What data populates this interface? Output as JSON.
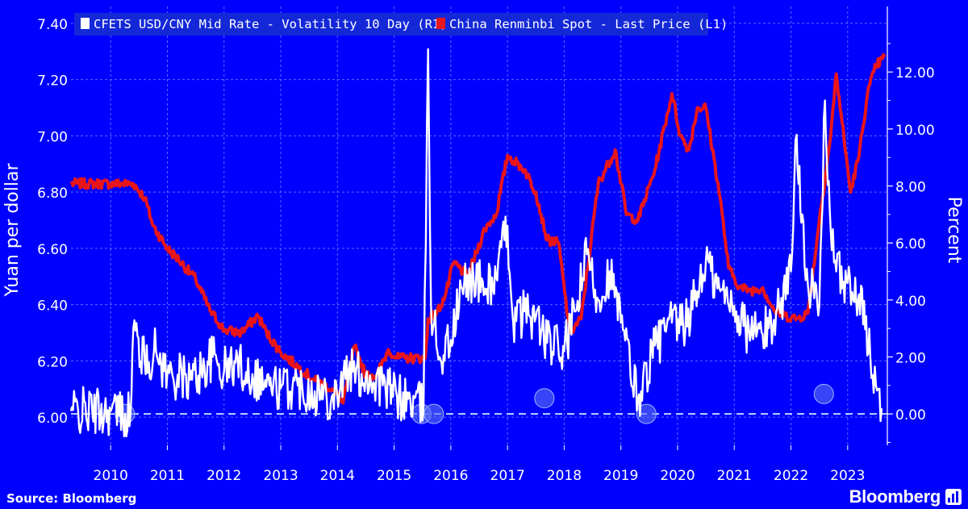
{
  "colors": {
    "background": "#0000FF",
    "volatility": "#FFFFFF",
    "spot": "#E8151B",
    "grid": "#5C6BFF",
    "baseline": "#BFD4FF"
  },
  "source_label": "Source:",
  "source_value": "Bloomberg",
  "brand": "Bloomberg",
  "brand_icon": "bar-chart-icon",
  "chart_data": {
    "type": "line",
    "left_axis_label": "Yuan per dollar",
    "right_axis_label": "Percent",
    "left_ylim": [
      5.9,
      7.46
    ],
    "left_ticks": [
      "6.00",
      "6.20",
      "6.40",
      "6.60",
      "6.80",
      "7.00",
      "7.20",
      "7.40"
    ],
    "right_ylim": [
      -1.1,
      14.3
    ],
    "right_ticks": [
      "0.00",
      "2.00",
      "4.00",
      "6.00",
      "8.00",
      "10.00",
      "12.00"
    ],
    "xlim": [
      2009.3,
      2023.7
    ],
    "x_ticks": [
      "2010",
      "2011",
      "2012",
      "2013",
      "2014",
      "2015",
      "2016",
      "2017",
      "2018",
      "2019",
      "2020",
      "2021",
      "2022",
      "2023"
    ],
    "grid": true,
    "legend_placement": "top-left",
    "legend": [
      {
        "label": "CFETS USD/CNY Mid Rate - Volatility 10 Day (R1)",
        "color": "#FFFFFF"
      },
      {
        "label": "China Renminbi Spot - Last Price (L1)",
        "color": "#E8151B"
      }
    ],
    "series": [
      {
        "name": "China Renminbi Spot - Last Price (L1)",
        "axis": "left",
        "points": [
          [
            2009.3,
            6.83
          ],
          [
            2010.0,
            6.83
          ],
          [
            2010.4,
            6.83
          ],
          [
            2010.6,
            6.78
          ],
          [
            2010.75,
            6.68
          ],
          [
            2011.0,
            6.6
          ],
          [
            2011.2,
            6.56
          ],
          [
            2011.5,
            6.49
          ],
          [
            2011.75,
            6.38
          ],
          [
            2012.0,
            6.31
          ],
          [
            2012.3,
            6.3
          ],
          [
            2012.6,
            6.36
          ],
          [
            2012.75,
            6.3
          ],
          [
            2013.0,
            6.23
          ],
          [
            2013.3,
            6.18
          ],
          [
            2013.6,
            6.13
          ],
          [
            2013.9,
            6.1
          ],
          [
            2014.1,
            6.05
          ],
          [
            2014.3,
            6.25
          ],
          [
            2014.5,
            6.15
          ],
          [
            2014.7,
            6.15
          ],
          [
            2014.9,
            6.24
          ],
          [
            2015.05,
            6.21
          ],
          [
            2015.2,
            6.21
          ],
          [
            2015.55,
            6.21
          ],
          [
            2015.6,
            6.35
          ],
          [
            2015.75,
            6.37
          ],
          [
            2015.9,
            6.43
          ],
          [
            2016.05,
            6.55
          ],
          [
            2016.3,
            6.5
          ],
          [
            2016.6,
            6.67
          ],
          [
            2016.8,
            6.72
          ],
          [
            2017.0,
            6.93
          ],
          [
            2017.3,
            6.88
          ],
          [
            2017.5,
            6.8
          ],
          [
            2017.7,
            6.63
          ],
          [
            2017.9,
            6.62
          ],
          [
            2018.1,
            6.3
          ],
          [
            2018.3,
            6.35
          ],
          [
            2018.6,
            6.83
          ],
          [
            2018.9,
            6.95
          ],
          [
            2019.1,
            6.72
          ],
          [
            2019.3,
            6.7
          ],
          [
            2019.6,
            6.88
          ],
          [
            2019.9,
            7.15
          ],
          [
            2020.05,
            7.0
          ],
          [
            2020.2,
            6.95
          ],
          [
            2020.35,
            7.1
          ],
          [
            2020.5,
            7.1
          ],
          [
            2020.75,
            6.78
          ],
          [
            2020.9,
            6.53
          ],
          [
            2021.1,
            6.46
          ],
          [
            2021.3,
            6.45
          ],
          [
            2021.5,
            6.46
          ],
          [
            2021.7,
            6.38
          ],
          [
            2021.9,
            6.36
          ],
          [
            2022.1,
            6.35
          ],
          [
            2022.3,
            6.37
          ],
          [
            2022.5,
            6.7
          ],
          [
            2022.7,
            7.0
          ],
          [
            2022.8,
            7.22
          ],
          [
            2022.9,
            7.05
          ],
          [
            2023.05,
            6.8
          ],
          [
            2023.2,
            6.93
          ],
          [
            2023.35,
            7.15
          ],
          [
            2023.5,
            7.25
          ],
          [
            2023.65,
            7.28
          ]
        ]
      },
      {
        "name": "CFETS USD/CNY Mid Rate - Volatility 10 Day (R1)",
        "axis": "right",
        "points": [
          [
            2009.3,
            0.1
          ],
          [
            2010.0,
            0.1
          ],
          [
            2010.35,
            0.0
          ],
          [
            2010.4,
            3.0
          ],
          [
            2010.6,
            1.8
          ],
          [
            2010.8,
            2.2
          ],
          [
            2011.0,
            1.4
          ],
          [
            2011.4,
            1.2
          ],
          [
            2011.6,
            1.5
          ],
          [
            2011.8,
            2.0
          ],
          [
            2012.0,
            1.5
          ],
          [
            2012.2,
            1.8
          ],
          [
            2012.5,
            1.4
          ],
          [
            2012.8,
            1.0
          ],
          [
            2013.0,
            0.9
          ],
          [
            2013.3,
            1.0
          ],
          [
            2013.6,
            0.8
          ],
          [
            2013.9,
            0.6
          ],
          [
            2014.2,
            1.5
          ],
          [
            2014.5,
            1.3
          ],
          [
            2014.8,
            1.0
          ],
          [
            2015.05,
            0.6
          ],
          [
            2015.52,
            0.3
          ],
          [
            2015.6,
            12.8
          ],
          [
            2015.65,
            3.8
          ],
          [
            2015.8,
            2.0
          ],
          [
            2016.0,
            2.6
          ],
          [
            2016.2,
            4.4
          ],
          [
            2016.4,
            4.8
          ],
          [
            2016.6,
            4.4
          ],
          [
            2016.8,
            4.8
          ],
          [
            2017.0,
            6.6
          ],
          [
            2017.1,
            3.2
          ],
          [
            2017.3,
            3.6
          ],
          [
            2017.5,
            3.4
          ],
          [
            2017.7,
            2.5
          ],
          [
            2018.0,
            2.2
          ],
          [
            2018.2,
            3.6
          ],
          [
            2018.4,
            5.6
          ],
          [
            2018.6,
            4.0
          ],
          [
            2018.8,
            5.0
          ],
          [
            2019.0,
            3.2
          ],
          [
            2019.3,
            0.5
          ],
          [
            2019.6,
            2.4
          ],
          [
            2019.9,
            3.2
          ],
          [
            2020.1,
            3.0
          ],
          [
            2020.3,
            4.0
          ],
          [
            2020.5,
            5.4
          ],
          [
            2020.7,
            4.4
          ],
          [
            2021.0,
            3.8
          ],
          [
            2021.2,
            3.0
          ],
          [
            2021.5,
            2.8
          ],
          [
            2021.7,
            3.3
          ],
          [
            2022.0,
            5.0
          ],
          [
            2022.1,
            9.8
          ],
          [
            2022.2,
            7.0
          ],
          [
            2022.3,
            4.5
          ],
          [
            2022.5,
            3.8
          ],
          [
            2022.6,
            11.0
          ],
          [
            2022.7,
            6.5
          ],
          [
            2022.8,
            5.0
          ],
          [
            2023.0,
            4.6
          ],
          [
            2023.1,
            4.0
          ],
          [
            2023.2,
            4.2
          ],
          [
            2023.4,
            2.0
          ],
          [
            2023.5,
            1.0
          ],
          [
            2023.6,
            0.2
          ]
        ]
      }
    ],
    "highlights": [
      [
        2010.25,
        0.0
      ],
      [
        2015.48,
        0.0
      ],
      [
        2015.7,
        0.0
      ],
      [
        2017.65,
        0.55
      ],
      [
        2019.45,
        0.0
      ],
      [
        2022.58,
        0.7
      ]
    ]
  }
}
